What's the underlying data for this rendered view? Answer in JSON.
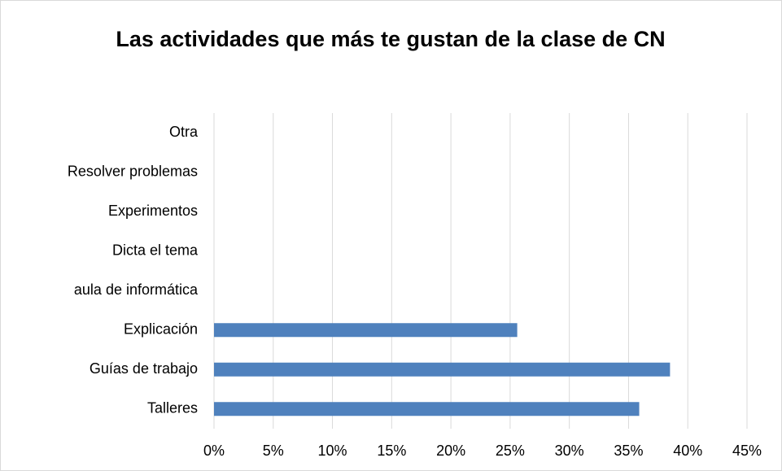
{
  "chart_data": {
    "type": "bar",
    "orientation": "horizontal",
    "title": "Las actividades que más te gustan de la clase de CN",
    "categories": [
      "Otra",
      "Resolver problemas",
      "Experimentos",
      "Dicta el tema",
      "aula de informática",
      "Explicación",
      "Guías de trabajo",
      "Talleres"
    ],
    "values": [
      0,
      0,
      0,
      0,
      0,
      25.6,
      38.5,
      35.9
    ],
    "color": "#4f81bd",
    "xlim": [
      0,
      45
    ],
    "xticks": [
      {
        "value": 0,
        "label": "0%"
      },
      {
        "value": 5,
        "label": "5%"
      },
      {
        "value": 10,
        "label": "10%"
      },
      {
        "value": 15,
        "label": "15%"
      },
      {
        "value": 20,
        "label": "20%"
      },
      {
        "value": 25,
        "label": "25%"
      },
      {
        "value": 30,
        "label": "30%"
      },
      {
        "value": 35,
        "label": "35%"
      },
      {
        "value": 40,
        "label": "40%"
      },
      {
        "value": 45,
        "label": "45%"
      }
    ],
    "grid": true
  }
}
